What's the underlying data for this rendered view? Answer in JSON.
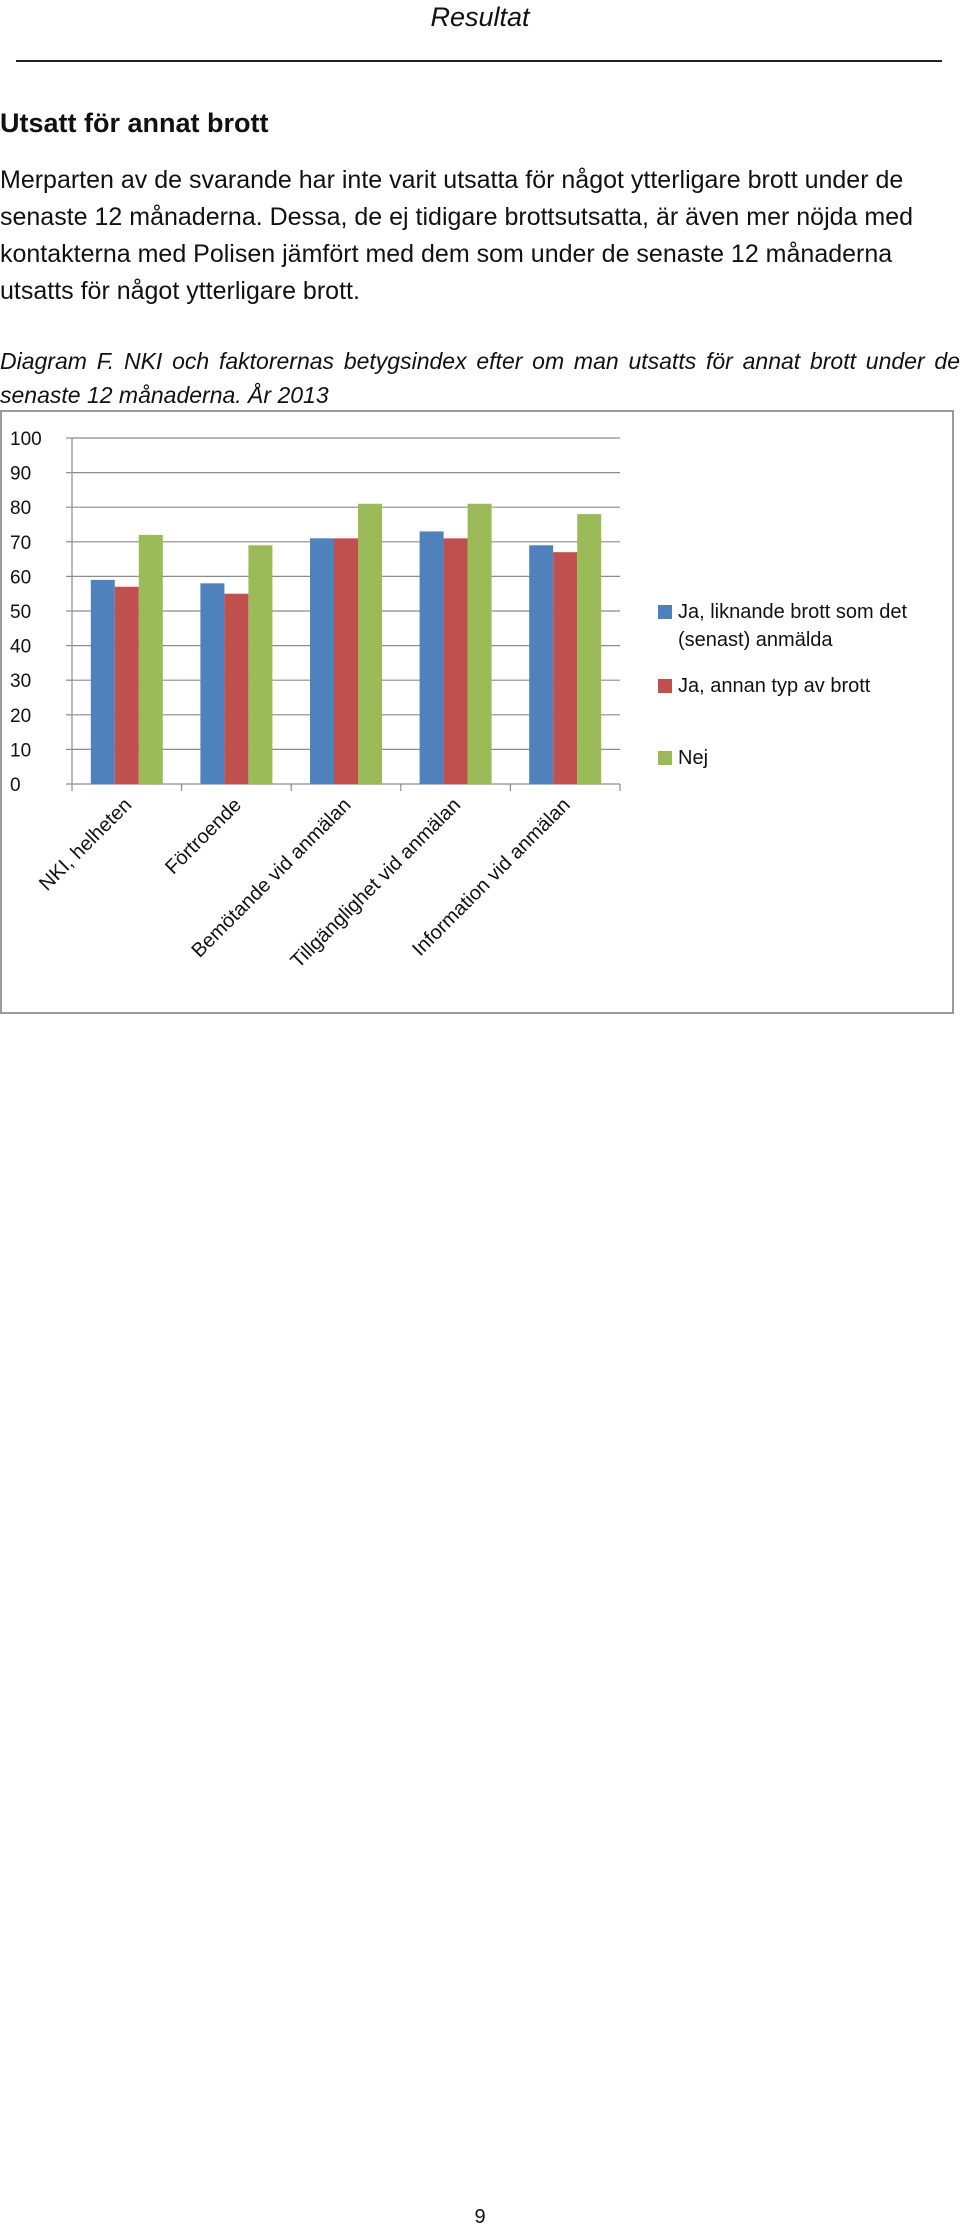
{
  "header": {
    "title": "Resultat"
  },
  "section": {
    "heading": "Utsatt för annat brott",
    "paragraph": "Merparten av de svarande har inte varit utsatta för något ytterligare brott under de senaste 12 månaderna. Dessa, de ej tidigare brottsutsatta, är även mer nöjda med kontakterna med Polisen jämfört med dem som under de senaste 12 månaderna utsatts för något ytterligare brott."
  },
  "caption": "Diagram F. NKI och faktorernas betygsindex efter om man utsatts för annat brott under de senaste 12 månaderna. År 2013",
  "chart_data": {
    "type": "bar",
    "categories": [
      "NKI, helheten",
      "Förtroende",
      "Bemötande vid anmälan",
      "Tillgänglighet vid anmälan",
      "Information vid anmälan"
    ],
    "series": [
      {
        "name": "Ja, liknande brott som det (senast) anmälda",
        "legend_lines": [
          "Ja, liknande brott som det",
          "(senast) anmälda"
        ],
        "color": "#4f81bd",
        "values": [
          59,
          58,
          71,
          73,
          69
        ]
      },
      {
        "name": "Ja, annan typ av brott",
        "legend_lines": [
          "Ja, annan typ av brott"
        ],
        "color": "#c0504d",
        "values": [
          57,
          55,
          71,
          71,
          67
        ]
      },
      {
        "name": "Nej",
        "legend_lines": [
          "Nej"
        ],
        "color": "#9bbb59",
        "values": [
          72,
          69,
          81,
          81,
          78
        ]
      }
    ],
    "ylim": [
      0,
      100
    ],
    "yticks": [
      "0",
      "10",
      "20",
      "30",
      "40",
      "50",
      "60",
      "70",
      "80",
      "90",
      "100"
    ],
    "grid": true,
    "legend": "right"
  },
  "footer": {
    "page_number": "9"
  }
}
